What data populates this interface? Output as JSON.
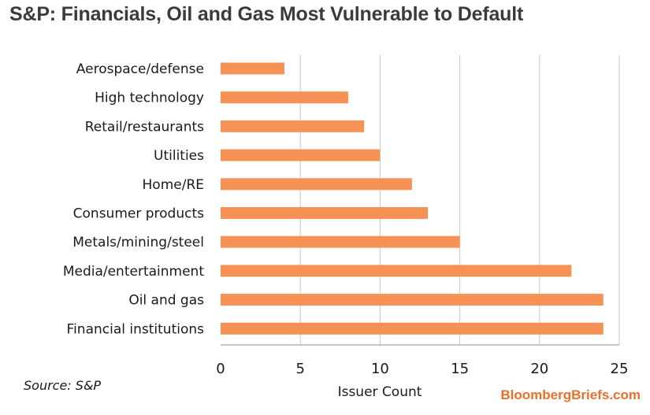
{
  "title": "S&P: Financials, Oil and Gas Most Vulnerable to Default",
  "source": "Source: S&P",
  "brand": "BloombergBriefs.com",
  "colors": {
    "bar": "#f79256",
    "grid": "#c8c8c8",
    "axis": "#8c8c8c",
    "brand": "#e8702a"
  },
  "chart_data": {
    "type": "bar",
    "orientation": "horizontal",
    "categories": [
      "Aerospace/defense",
      "High technology",
      "Retail/restaurants",
      "Utilities",
      "Home/RE",
      "Consumer products",
      "Metals/mining/steel",
      "Media/entertainment",
      "Oil and gas",
      "Financial institutions"
    ],
    "values": [
      4,
      8,
      9,
      10,
      12,
      13,
      15,
      22,
      24,
      24
    ],
    "xlabel": "Issuer Count",
    "ylabel": "",
    "xlim": [
      0,
      25
    ],
    "xticks": [
      "0",
      "5",
      "10",
      "15",
      "20",
      "25"
    ],
    "grid": "vertical",
    "legend": "none"
  }
}
